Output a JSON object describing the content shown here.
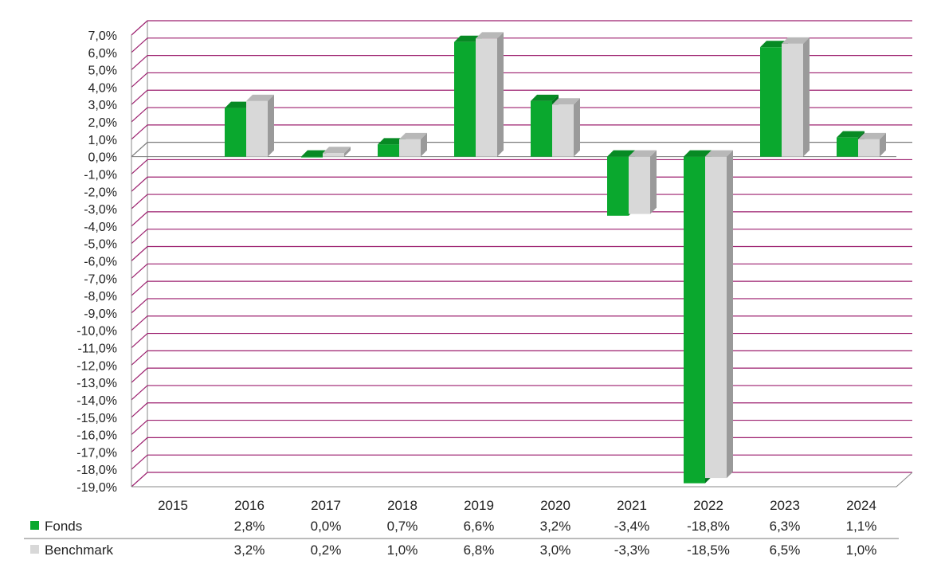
{
  "chart_data": {
    "type": "bar",
    "categories": [
      "2015",
      "2016",
      "2017",
      "2018",
      "2019",
      "2020",
      "2021",
      "2022",
      "2023",
      "2024"
    ],
    "series": [
      {
        "name": "Fonds",
        "values": [
          null,
          2.8,
          0.0,
          0.7,
          6.6,
          3.2,
          -3.4,
          -18.8,
          6.3,
          1.1
        ],
        "labels": [
          "",
          "2,8%",
          "0,0%",
          "0,7%",
          "6,6%",
          "3,2%",
          "-3,4%",
          "-18,8%",
          "6,3%",
          "1,1%"
        ],
        "color": "#0aa82e",
        "top_color": "#078a24",
        "side_color": "#057020"
      },
      {
        "name": "Benchmark",
        "values": [
          null,
          3.2,
          0.2,
          1.0,
          6.8,
          3.0,
          -3.3,
          -18.5,
          6.5,
          1.0
        ],
        "labels": [
          "",
          "3,2%",
          "0,2%",
          "1,0%",
          "6,8%",
          "3,0%",
          "-3,3%",
          "-18,5%",
          "6,5%",
          "1,0%"
        ],
        "color": "#d8d8d8",
        "top_color": "#b8b8b8",
        "side_color": "#9a9a9a"
      }
    ],
    "y_ticks": [
      "7,0%",
      "6,0%",
      "5,0%",
      "4,0%",
      "3,0%",
      "2,0%",
      "1,0%",
      "0,0%",
      "-1,0%",
      "-2,0%",
      "-3,0%",
      "-4,0%",
      "-5,0%",
      "-6,0%",
      "-7,0%",
      "-8,0%",
      "-9,0%",
      "-10,0%",
      "-11,0%",
      "-12,0%",
      "-13,0%",
      "-14,0%",
      "-15,0%",
      "-16,0%",
      "-17,0%",
      "-18,0%",
      "-19,0%"
    ],
    "ylim": [
      -19,
      7
    ],
    "grid": true,
    "gridline_color": "#9c1f6e",
    "legend_placement": "data-table-below"
  }
}
